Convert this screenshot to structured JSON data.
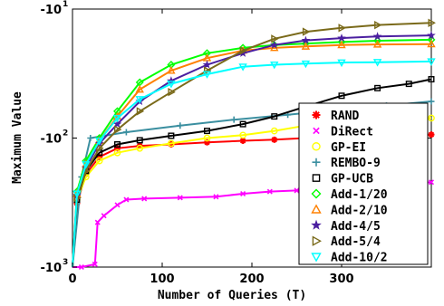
{
  "chart_data": {
    "type": "line",
    "title": "",
    "xlabel": "Number of Queries (T)",
    "ylabel": "Maximum Value",
    "xlim": [
      0,
      400
    ],
    "ylim": [
      -1000,
      -10
    ],
    "y_scale": "symlog-negative",
    "grid": false,
    "legend_position": "bottom-right",
    "x_ticks": [
      "0",
      "100",
      "200",
      "300"
    ],
    "y_ticks": [
      {
        "value": -10,
        "label": "-10",
        "exp": "1"
      },
      {
        "value": -100,
        "label": "-10",
        "exp": "2"
      },
      {
        "value": -1000,
        "label": "-10",
        "exp": "3"
      }
    ],
    "series": [
      {
        "name": "RAND",
        "color": "#ff0000",
        "marker": "asterisk",
        "points": [
          [
            0,
            -1000
          ],
          [
            5,
            -320
          ],
          [
            15,
            -190
          ],
          [
            30,
            -140
          ],
          [
            50,
            -120
          ],
          [
            75,
            -115
          ],
          [
            110,
            -112
          ],
          [
            150,
            -108
          ],
          [
            190,
            -105
          ],
          [
            225,
            -103
          ],
          [
            260,
            -100
          ],
          [
            300,
            -98
          ],
          [
            340,
            -96
          ],
          [
            400,
            -94
          ]
        ]
      },
      {
        "name": "DiRect",
        "color": "#ff00ff",
        "marker": "x",
        "points": [
          [
            0,
            -1000
          ],
          [
            10,
            -1000
          ],
          [
            25,
            -950
          ],
          [
            28,
            -450
          ],
          [
            35,
            -400
          ],
          [
            50,
            -330
          ],
          [
            60,
            -300
          ],
          [
            80,
            -295
          ],
          [
            120,
            -290
          ],
          [
            160,
            -285
          ],
          [
            190,
            -270
          ],
          [
            220,
            -260
          ],
          [
            250,
            -255
          ],
          [
            290,
            -245
          ],
          [
            330,
            -230
          ],
          [
            370,
            -225
          ],
          [
            400,
            -220
          ]
        ]
      },
      {
        "name": "GP-EI",
        "color": "#ffff00",
        "marker": "circle",
        "points": [
          [
            0,
            -1000
          ],
          [
            5,
            -300
          ],
          [
            15,
            -200
          ],
          [
            30,
            -150
          ],
          [
            50,
            -130
          ],
          [
            75,
            -120
          ],
          [
            110,
            -110
          ],
          [
            150,
            -100
          ],
          [
            190,
            -95
          ],
          [
            225,
            -88
          ],
          [
            260,
            -80
          ],
          [
            300,
            -75
          ],
          [
            340,
            -72
          ],
          [
            400,
            -70
          ]
        ]
      },
      {
        "name": "REMBO-9",
        "color": "#3b8fa0",
        "marker": "plus",
        "points": [
          [
            0,
            -1000
          ],
          [
            10,
            -200
          ],
          [
            20,
            -100
          ],
          [
            60,
            -90
          ],
          [
            120,
            -80
          ],
          [
            180,
            -72
          ],
          [
            240,
            -66
          ],
          [
            300,
            -60
          ],
          [
            350,
            -56
          ],
          [
            400,
            -52
          ]
        ]
      },
      {
        "name": "GP-UCB",
        "color": "#000000",
        "marker": "square",
        "points": [
          [
            0,
            -1000
          ],
          [
            5,
            -300
          ],
          [
            15,
            -180
          ],
          [
            30,
            -130
          ],
          [
            50,
            -112
          ],
          [
            75,
            -104
          ],
          [
            110,
            -96
          ],
          [
            150,
            -88
          ],
          [
            190,
            -78
          ],
          [
            225,
            -68
          ],
          [
            260,
            -57
          ],
          [
            300,
            -47
          ],
          [
            340,
            -41
          ],
          [
            375,
            -38
          ],
          [
            400,
            -35
          ]
        ]
      },
      {
        "name": "Add-1/20",
        "color": "#00ff00",
        "marker": "diamond",
        "points": [
          [
            0,
            -1000
          ],
          [
            5,
            -260
          ],
          [
            15,
            -150
          ],
          [
            30,
            -100
          ],
          [
            50,
            -62
          ],
          [
            75,
            -37
          ],
          [
            110,
            -27
          ],
          [
            150,
            -22
          ],
          [
            190,
            -20
          ],
          [
            225,
            -19
          ],
          [
            260,
            -18.5
          ],
          [
            300,
            -18
          ],
          [
            340,
            -17.6
          ],
          [
            400,
            -17.3
          ]
        ]
      },
      {
        "name": "Add-2/10",
        "color": "#ff8000",
        "marker": "triangle-up",
        "points": [
          [
            0,
            -1000
          ],
          [
            5,
            -270
          ],
          [
            15,
            -160
          ],
          [
            30,
            -105
          ],
          [
            50,
            -68
          ],
          [
            75,
            -42
          ],
          [
            110,
            -30
          ],
          [
            150,
            -24
          ],
          [
            190,
            -21
          ],
          [
            225,
            -20
          ],
          [
            260,
            -19.5
          ],
          [
            300,
            -19
          ],
          [
            340,
            -18.8
          ],
          [
            400,
            -18.7
          ]
        ]
      },
      {
        "name": "Add-4/5",
        "color": "#4b1fa0",
        "marker": "star",
        "points": [
          [
            0,
            -1000
          ],
          [
            5,
            -280
          ],
          [
            15,
            -170
          ],
          [
            30,
            -110
          ],
          [
            50,
            -78
          ],
          [
            75,
            -52
          ],
          [
            110,
            -36
          ],
          [
            150,
            -27
          ],
          [
            190,
            -22
          ],
          [
            225,
            -19
          ],
          [
            260,
            -17.5
          ],
          [
            300,
            -16.8
          ],
          [
            340,
            -16.3
          ],
          [
            400,
            -16
          ]
        ]
      },
      {
        "name": "Add-5/4",
        "color": "#7a6a1a",
        "marker": "triangle-right",
        "points": [
          [
            0,
            -1000
          ],
          [
            5,
            -290
          ],
          [
            15,
            -180
          ],
          [
            30,
            -120
          ],
          [
            50,
            -86
          ],
          [
            75,
            -62
          ],
          [
            110,
            -44
          ],
          [
            150,
            -30
          ],
          [
            190,
            -21
          ],
          [
            225,
            -17
          ],
          [
            260,
            -15
          ],
          [
            300,
            -14
          ],
          [
            340,
            -13.3
          ],
          [
            400,
            -12.8
          ]
        ]
      },
      {
        "name": "Add-10/2",
        "color": "#00ffff",
        "marker": "triangle-down",
        "points": [
          [
            0,
            -1000
          ],
          [
            5,
            -270
          ],
          [
            15,
            -160
          ],
          [
            30,
            -105
          ],
          [
            50,
            -70
          ],
          [
            75,
            -50
          ],
          [
            110,
            -38
          ],
          [
            150,
            -32
          ],
          [
            190,
            -28
          ],
          [
            225,
            -27
          ],
          [
            260,
            -26.5
          ],
          [
            300,
            -26
          ],
          [
            340,
            -25.8
          ],
          [
            400,
            -25.5
          ]
        ]
      }
    ]
  }
}
